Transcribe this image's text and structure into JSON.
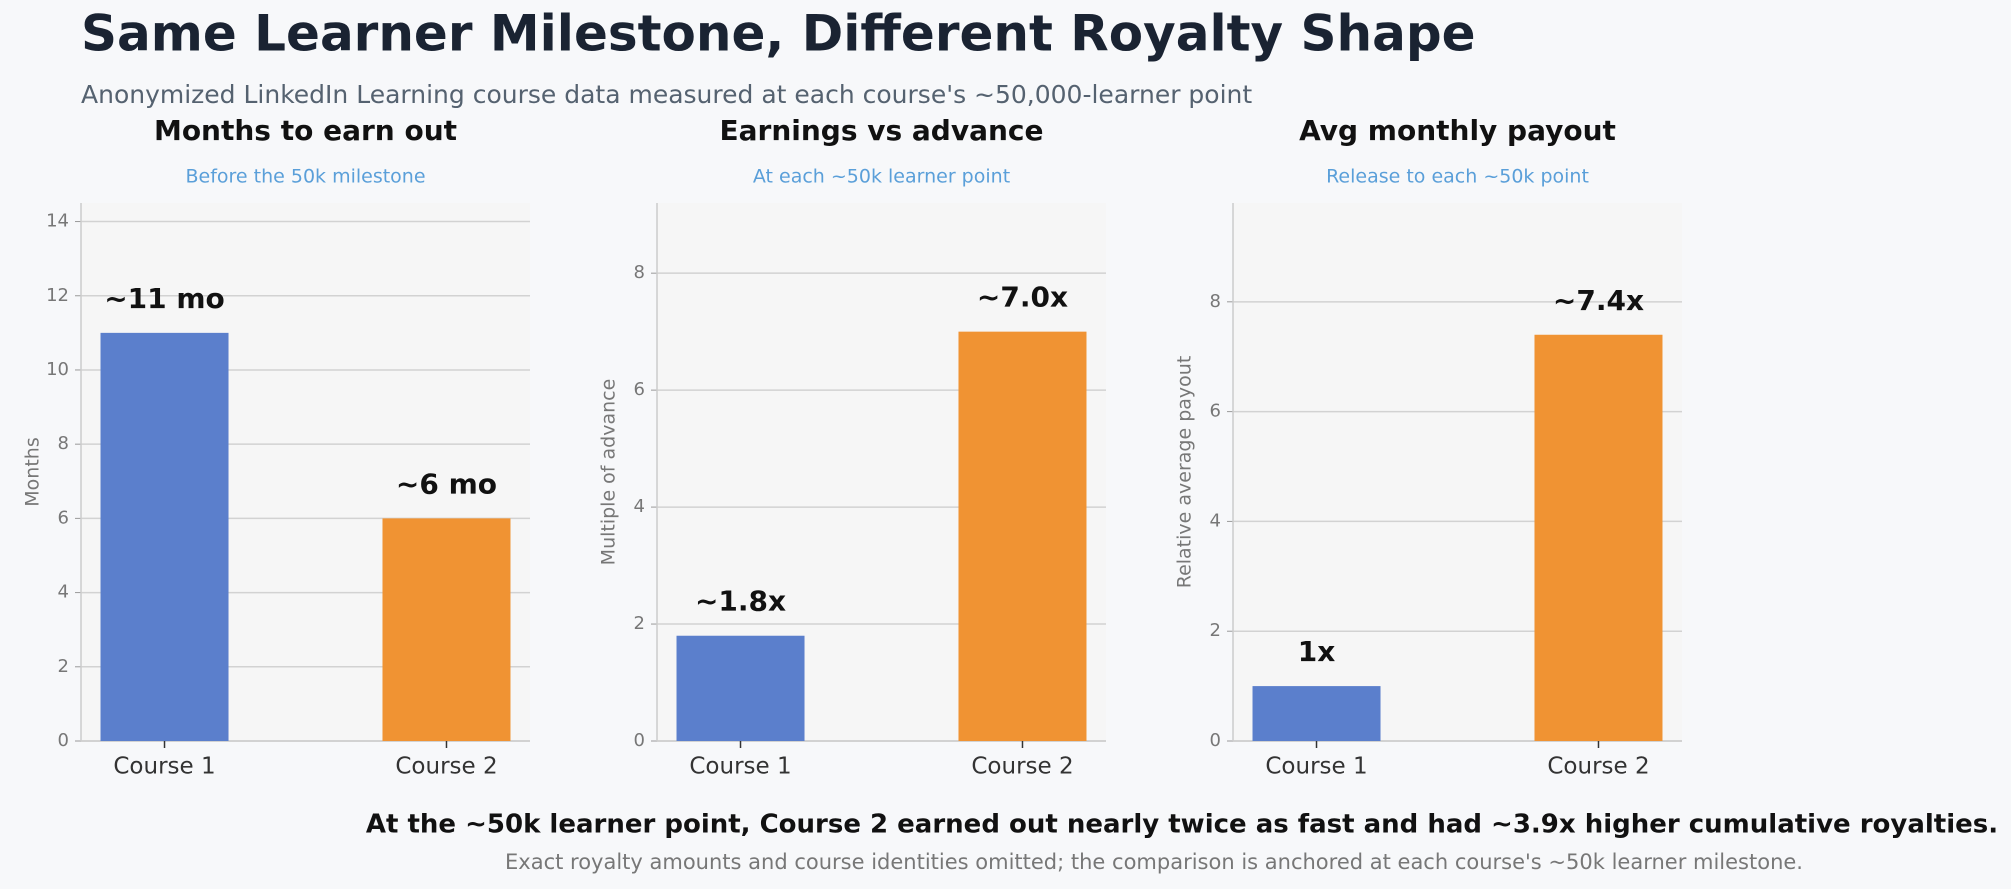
{
  "header": {
    "title": "Same Learner Milestone, Different Royalty Shape",
    "subtitle": "Anonymized LinkedIn Learning course data measured at each course's ~50,000-learner point"
  },
  "chart_data": [
    {
      "type": "bar",
      "title": "Months to earn out",
      "subtitle": "Before the 50k milestone",
      "ylabel": "Months",
      "categories": [
        "Course 1",
        "Course 2"
      ],
      "values": [
        11,
        6
      ],
      "value_labels": [
        "~11 mo",
        "~6 mo"
      ],
      "colors": [
        "#5b7fcc",
        "#f09333"
      ],
      "ylim": [
        0,
        14.5
      ],
      "yticks": [
        0,
        2,
        4,
        6,
        8,
        10,
        12,
        14
      ],
      "grid": true
    },
    {
      "type": "bar",
      "title": "Earnings vs advance",
      "subtitle": "At each ~50k learner point",
      "ylabel": "Multiple of advance",
      "categories": [
        "Course 1",
        "Course 2"
      ],
      "values": [
        1.8,
        7.0
      ],
      "value_labels": [
        "~1.8x",
        "~7.0x"
      ],
      "colors": [
        "#5b7fcc",
        "#f09333"
      ],
      "ylim": [
        0,
        9.2
      ],
      "yticks": [
        0,
        2,
        4,
        6,
        8
      ],
      "grid": true
    },
    {
      "type": "bar",
      "title": "Avg monthly payout",
      "subtitle": "Release to each ~50k point",
      "ylabel": "Relative average payout",
      "categories": [
        "Course 1",
        "Course 2"
      ],
      "values": [
        1,
        7.4
      ],
      "value_labels": [
        "1x",
        "~7.4x"
      ],
      "colors": [
        "#5b7fcc",
        "#f09333"
      ],
      "ylim": [
        0,
        9.8
      ],
      "yticks": [
        0,
        2,
        4,
        6,
        8
      ],
      "grid": true
    }
  ],
  "footer": {
    "headline": "At the ~50k learner point, Course 2 earned out nearly twice as fast and had ~3.9x higher cumulative royalties.",
    "note": "Exact royalty amounts and course identities omitted; the comparison is anchored at each course's ~50k learner milestone."
  }
}
